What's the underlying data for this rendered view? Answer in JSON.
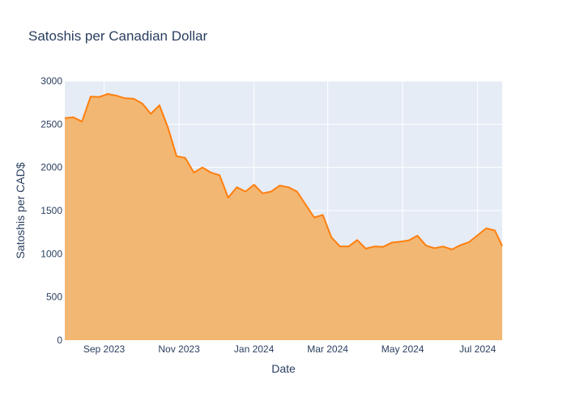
{
  "chart_data": {
    "type": "area",
    "title": "Satoshis per Canadian Dollar",
    "xlabel": "Date",
    "ylabel": "Satoshis per CAD$",
    "x_range": [
      "2023-07-31",
      "2024-07-21"
    ],
    "ylim": [
      0,
      3000
    ],
    "y_ticks": [
      0,
      500,
      1000,
      1500,
      2000,
      2500,
      3000
    ],
    "x_ticks": [
      {
        "date": "2023-09-01",
        "label": "Sep 2023"
      },
      {
        "date": "2023-11-01",
        "label": "Nov 2023"
      },
      {
        "date": "2024-01-01",
        "label": "Jan 2024"
      },
      {
        "date": "2024-03-01",
        "label": "Mar 2024"
      },
      {
        "date": "2024-05-01",
        "label": "May 2024"
      },
      {
        "date": "2024-07-01",
        "label": "Jul 2024"
      }
    ],
    "grid": true,
    "colors": {
      "line": "#ff7f0e",
      "fill": "#f2b773",
      "plot_bg": "#e5ecf6",
      "grid": "#ffffff",
      "text": "#2a3f5f"
    },
    "series": [
      {
        "x": [
          "2023-07-31",
          "2023-08-07",
          "2023-08-14",
          "2023-08-21",
          "2023-08-28",
          "2023-09-04",
          "2023-09-11",
          "2023-09-18",
          "2023-09-25",
          "2023-10-02",
          "2023-10-09",
          "2023-10-16",
          "2023-10-23",
          "2023-10-30",
          "2023-11-06",
          "2023-11-13",
          "2023-11-20",
          "2023-11-27",
          "2023-12-04",
          "2023-12-11",
          "2023-12-18",
          "2023-12-25",
          "2024-01-01",
          "2024-01-08",
          "2024-01-15",
          "2024-01-22",
          "2024-01-29",
          "2024-02-05",
          "2024-02-12",
          "2024-02-19",
          "2024-02-26",
          "2024-03-04",
          "2024-03-11",
          "2024-03-18",
          "2024-03-25",
          "2024-04-01",
          "2024-04-08",
          "2024-04-15",
          "2024-04-22",
          "2024-04-29",
          "2024-05-06",
          "2024-05-13",
          "2024-05-20",
          "2024-05-27",
          "2024-06-03",
          "2024-06-10",
          "2024-06-17",
          "2024-06-24",
          "2024-07-01",
          "2024-07-08",
          "2024-07-15",
          "2024-07-21"
        ],
        "y": [
          2570,
          2580,
          2530,
          2820,
          2815,
          2850,
          2830,
          2800,
          2795,
          2740,
          2620,
          2720,
          2460,
          2130,
          2110,
          1940,
          2000,
          1940,
          1910,
          1650,
          1770,
          1720,
          1800,
          1700,
          1720,
          1790,
          1770,
          1720,
          1570,
          1420,
          1450,
          1190,
          1085,
          1085,
          1160,
          1060,
          1085,
          1080,
          1130,
          1140,
          1155,
          1210,
          1095,
          1065,
          1085,
          1050,
          1100,
          1135,
          1215,
          1295,
          1270,
          1090
        ]
      }
    ]
  }
}
